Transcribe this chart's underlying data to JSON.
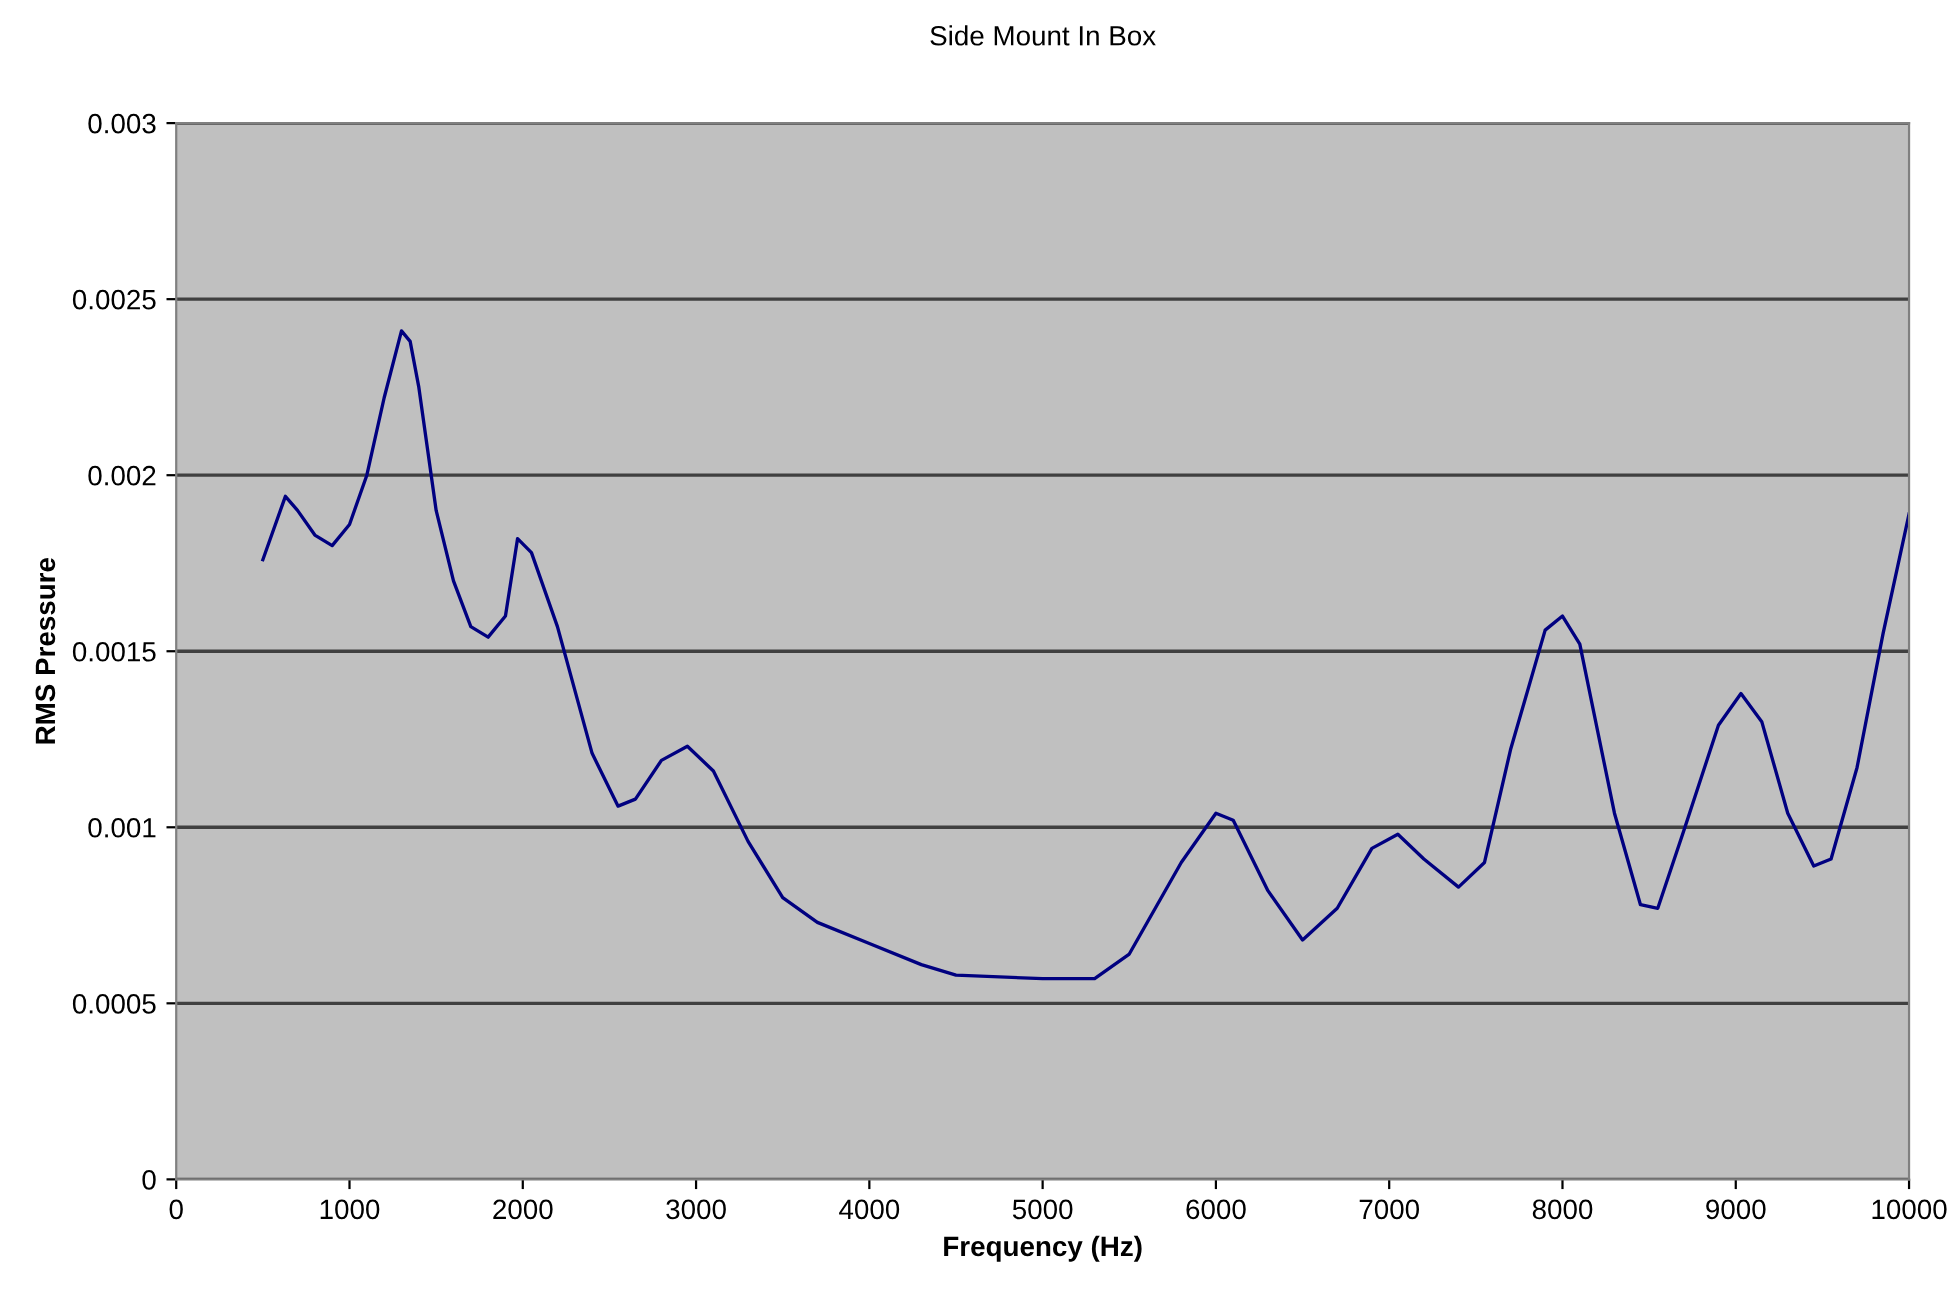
{
  "chart_data": {
    "type": "line",
    "title": "Side Mount In Box",
    "xlabel": "Frequency (Hz)",
    "ylabel": "RMS Pressure",
    "x": [
      500,
      630,
      700,
      800,
      900,
      1000,
      1100,
      1200,
      1300,
      1350,
      1400,
      1500,
      1600,
      1700,
      1800,
      1900,
      1970,
      2050,
      2200,
      2400,
      2550,
      2650,
      2800,
      2950,
      3100,
      3300,
      3500,
      3700,
      4000,
      4300,
      4500,
      5000,
      5300,
      5500,
      5800,
      6000,
      6100,
      6300,
      6500,
      6700,
      6900,
      7050,
      7200,
      7400,
      7550,
      7700,
      7900,
      8000,
      8100,
      8300,
      8450,
      8550,
      8700,
      8900,
      9030,
      9150,
      9300,
      9450,
      9550,
      9700,
      9850,
      10000
    ],
    "series": [
      {
        "color": "#000080",
        "values": [
          0.00176,
          0.00194,
          0.0019,
          0.00183,
          0.0018,
          0.00186,
          0.002,
          0.00222,
          0.00241,
          0.00238,
          0.00225,
          0.0019,
          0.0017,
          0.00157,
          0.00154,
          0.0016,
          0.00182,
          0.00178,
          0.00157,
          0.00121,
          0.00106,
          0.00108,
          0.00119,
          0.00123,
          0.00116,
          0.00096,
          0.0008,
          0.00073,
          0.00067,
          0.00061,
          0.00058,
          0.00057,
          0.00057,
          0.00064,
          0.0009,
          0.00104,
          0.00102,
          0.00082,
          0.00068,
          0.00077,
          0.00094,
          0.00098,
          0.00091,
          0.00083,
          0.0009,
          0.00122,
          0.00156,
          0.0016,
          0.00152,
          0.00104,
          0.00078,
          0.00077,
          0.00099,
          0.00129,
          0.00138,
          0.0013,
          0.00104,
          0.00089,
          0.00091,
          0.00117,
          0.00155,
          0.00189
        ]
      }
    ],
    "xlim": [
      0,
      10000
    ],
    "xticks": [
      0,
      1000,
      2000,
      3000,
      4000,
      5000,
      6000,
      7000,
      8000,
      9000,
      10000
    ],
    "ylim": [
      0,
      0.003
    ],
    "yticks": [
      0,
      0.0005,
      0.001,
      0.0015,
      0.002,
      0.0025,
      0.003
    ],
    "grid": "y",
    "legend": false
  }
}
